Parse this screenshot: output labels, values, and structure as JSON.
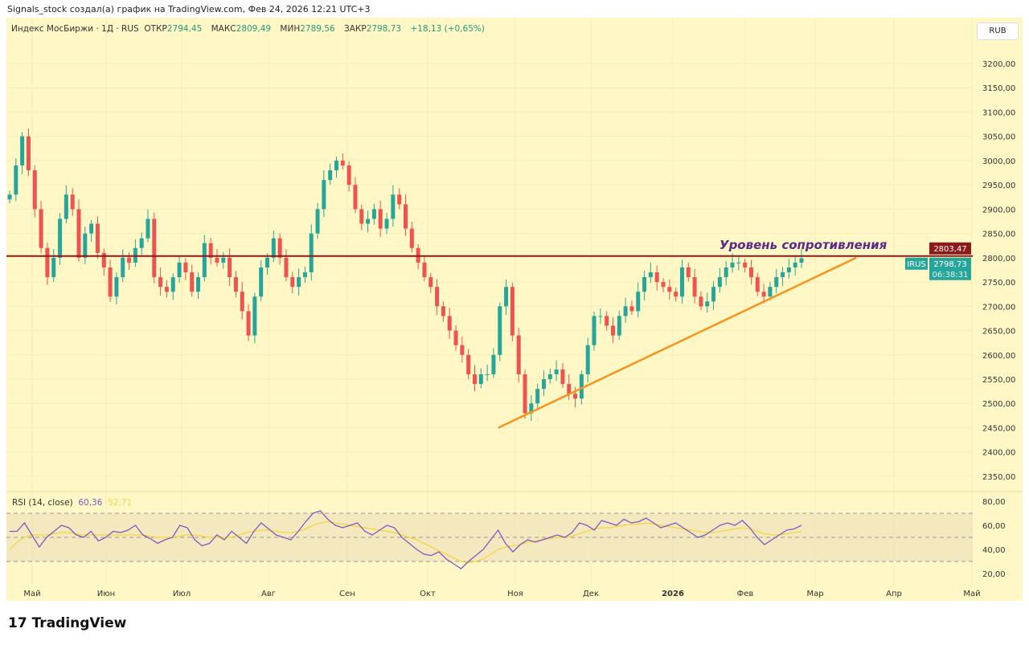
{
  "header": {
    "caption": "Signals_stock создал(а) график на TradingView.com, Фев 24, 2026 12:21 UTC+3"
  },
  "legend": {
    "symbol": "Индекс МосБиржи · 1Д · RUS",
    "open_label": "ОТКР",
    "open": "2794,45",
    "high_label": "МАКС",
    "high": "2809,49",
    "low_label": "МИН",
    "low": "2789,56",
    "close_label": "ЗАКР",
    "close": "2798,73",
    "change": "+18,13 (+0,65%)"
  },
  "currency": "RUB",
  "chart_data": [
    {
      "type": "candlestick",
      "ylim": [
        2320,
        3240
      ],
      "y_ticks": [
        "3200,00",
        "3150,00",
        "3100,00",
        "3050,00",
        "3000,00",
        "2950,00",
        "2900,00",
        "2850,00",
        "2800,00",
        "2750,00",
        "2700,00",
        "2650,00",
        "2600,00",
        "2550,00",
        "2500,00",
        "2450,00",
        "2400,00",
        "2350,00"
      ],
      "x_ticks": [
        "Май",
        "Июн",
        "Июл",
        "Авг",
        "Сен",
        "Окт",
        "Ноя",
        "Дек",
        "2026",
        "Фев",
        "Мар",
        "Апр",
        "Май"
      ],
      "closes": [
        2930,
        2990,
        3050,
        2980,
        2900,
        2820,
        2760,
        2800,
        2880,
        2930,
        2900,
        2800,
        2850,
        2870,
        2810,
        2780,
        2720,
        2760,
        2800,
        2790,
        2820,
        2840,
        2880,
        2760,
        2740,
        2730,
        2760,
        2790,
        2770,
        2730,
        2760,
        2830,
        2800,
        2790,
        2800,
        2760,
        2730,
        2690,
        2640,
        2720,
        2780,
        2800,
        2840,
        2800,
        2760,
        2740,
        2760,
        2770,
        2850,
        2900,
        2960,
        2980,
        3000,
        2990,
        2950,
        2900,
        2870,
        2880,
        2900,
        2860,
        2880,
        2930,
        2910,
        2860,
        2820,
        2790,
        2760,
        2740,
        2700,
        2680,
        2650,
        2620,
        2600,
        2560,
        2540,
        2560,
        2560,
        2600,
        2700,
        2740,
        2640,
        2560,
        2480,
        2500,
        2530,
        2550,
        2560,
        2570,
        2540,
        2520,
        2510,
        2560,
        2620,
        2680,
        2680,
        2660,
        2640,
        2680,
        2700,
        2690,
        2730,
        2760,
        2770,
        2750,
        2740,
        2730,
        2720,
        2780,
        2760,
        2720,
        2700,
        2710,
        2740,
        2760,
        2780,
        2790,
        2790,
        2780,
        2760,
        2730,
        2720,
        2740,
        2760,
        2770,
        2780,
        2790,
        2798.73
      ],
      "resistance": {
        "value": 2803.47,
        "label": "2803,47",
        "text": "Уровень сопротивления"
      },
      "trendline": {
        "from": 2450,
        "to": 2800
      },
      "last": {
        "symbol": "IRUS",
        "price": "2798,73",
        "countdown": "06:38:31"
      },
      "colors": {
        "up": "#26a69a",
        "down": "#ef5350",
        "resistance": "#8b1a1a",
        "trend": "#f7931e",
        "label": "#5b2a86"
      }
    },
    {
      "type": "line",
      "title": "RSI (14, close)",
      "rsi_value": "60,36",
      "ma_value": "52,71",
      "ylim": [
        15,
        85
      ],
      "levels": [
        70,
        50,
        30
      ],
      "y_ticks": [
        "80,00",
        "60,00",
        "40,00",
        "20,00"
      ],
      "rsi": [
        55,
        55,
        62,
        52,
        42,
        50,
        55,
        60,
        58,
        52,
        50,
        55,
        47,
        50,
        55,
        54,
        56,
        60,
        52,
        49,
        45,
        48,
        50,
        60,
        58,
        48,
        43,
        45,
        52,
        48,
        55,
        50,
        45,
        55,
        62,
        57,
        52,
        50,
        48,
        55,
        63,
        70,
        72,
        65,
        60,
        58,
        60,
        62,
        55,
        52,
        56,
        60,
        58,
        50,
        45,
        40,
        36,
        35,
        38,
        32,
        28,
        24,
        30,
        35,
        40,
        48,
        56,
        45,
        38,
        44,
        48,
        46,
        48,
        50,
        52,
        50,
        54,
        62,
        60,
        56,
        64,
        62,
        60,
        65,
        62,
        63,
        66,
        62,
        58,
        60,
        62,
        58,
        54,
        50,
        52,
        56,
        60,
        62,
        60,
        64,
        58,
        50,
        44,
        48,
        52,
        56,
        57,
        60
      ],
      "ma": [
        40,
        46,
        50,
        52,
        52,
        52,
        53,
        54,
        54,
        53,
        52,
        52,
        52,
        52,
        52,
        52,
        52,
        52,
        52,
        51,
        50,
        50,
        50,
        51,
        52,
        52,
        51,
        50,
        50,
        50,
        50,
        52,
        54,
        55,
        56,
        56,
        55,
        54,
        54,
        55,
        57,
        60,
        62,
        63,
        62,
        61,
        60,
        59,
        58,
        57,
        56,
        55,
        54,
        52,
        50,
        48,
        45,
        42,
        39,
        36,
        33,
        30,
        29,
        30,
        32,
        36,
        40,
        42,
        43,
        44,
        46,
        47,
        48,
        49,
        50,
        50,
        51,
        53,
        55,
        57,
        58,
        58,
        59,
        60,
        61,
        61,
        62,
        61,
        60,
        59,
        58,
        57,
        56,
        55,
        54,
        54,
        55,
        56,
        57,
        58,
        57,
        55,
        53,
        52,
        52,
        53,
        54,
        55
      ]
    }
  ],
  "brand": "TradingView"
}
